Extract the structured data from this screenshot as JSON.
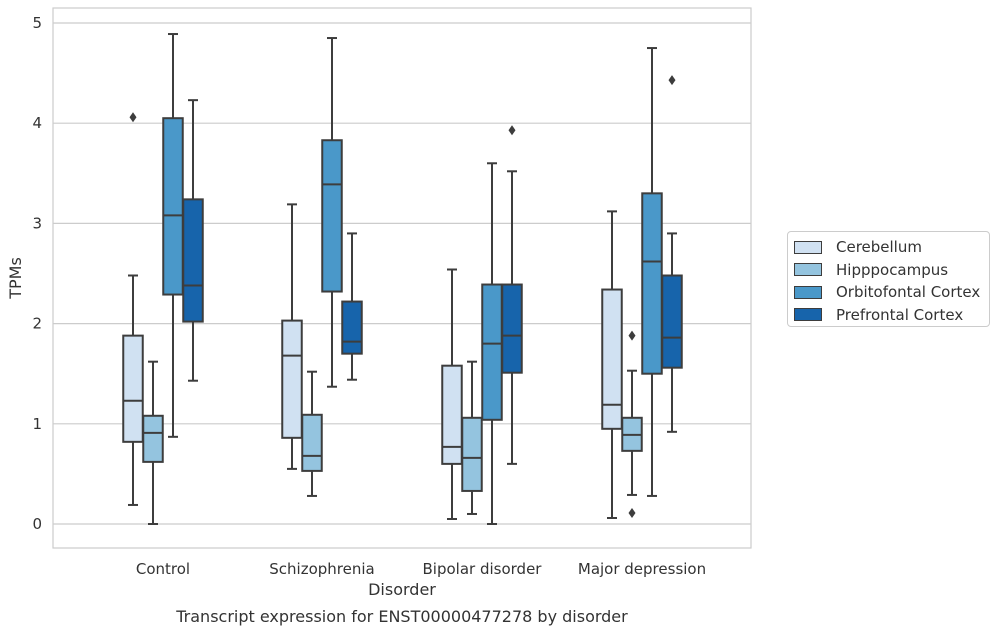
{
  "chart_data": {
    "type": "box",
    "title": "Transcript expression for ENST00000477278 by disorder",
    "xlabel": "Disorder",
    "ylabel": "TPMs",
    "ylim": [
      -0.24,
      5.15
    ],
    "yticks": [
      0,
      1,
      2,
      3,
      4,
      5
    ],
    "grid": "horizontal",
    "legend_position": "right",
    "categories": [
      "Control",
      "Schizophrenia",
      "Bipolar disorder",
      "Major depression"
    ],
    "series": [
      {
        "name": "Cerebellum",
        "color": "#d0e1f2",
        "boxes": [
          {
            "whislo": 0.19,
            "q1": 0.82,
            "med": 1.23,
            "q3": 1.88,
            "whishi": 2.48,
            "fliers": [
              4.06
            ]
          },
          {
            "whislo": 0.55,
            "q1": 0.86,
            "med": 1.68,
            "q3": 2.03,
            "whishi": 3.19,
            "fliers": []
          },
          {
            "whislo": 0.05,
            "q1": 0.6,
            "med": 0.77,
            "q3": 1.58,
            "whishi": 2.54,
            "fliers": []
          },
          {
            "whislo": 0.06,
            "q1": 0.95,
            "med": 1.19,
            "q3": 2.34,
            "whishi": 3.12,
            "fliers": []
          }
        ]
      },
      {
        "name": "Hipppocampus",
        "color": "#94c4df",
        "boxes": [
          {
            "whislo": 0.0,
            "q1": 0.62,
            "med": 0.91,
            "q3": 1.08,
            "whishi": 1.62,
            "fliers": []
          },
          {
            "whislo": 0.28,
            "q1": 0.53,
            "med": 0.68,
            "q3": 1.09,
            "whishi": 1.52,
            "fliers": []
          },
          {
            "whislo": 0.1,
            "q1": 0.33,
            "med": 0.66,
            "q3": 1.06,
            "whishi": 1.62,
            "fliers": []
          },
          {
            "whislo": 0.29,
            "q1": 0.73,
            "med": 0.89,
            "q3": 1.06,
            "whishi": 1.53,
            "fliers": [
              1.88,
              0.11
            ]
          }
        ]
      },
      {
        "name": "Orbitofontal Cortex",
        "color": "#4a98c9",
        "boxes": [
          {
            "whislo": 0.87,
            "q1": 2.29,
            "med": 3.08,
            "q3": 4.05,
            "whishi": 4.89,
            "fliers": []
          },
          {
            "whislo": 1.37,
            "q1": 2.32,
            "med": 3.39,
            "q3": 3.83,
            "whishi": 4.85,
            "fliers": []
          },
          {
            "whislo": 0.0,
            "q1": 1.04,
            "med": 1.8,
            "q3": 2.39,
            "whishi": 3.6,
            "fliers": []
          },
          {
            "whislo": 0.28,
            "q1": 1.5,
            "med": 2.62,
            "q3": 3.3,
            "whishi": 4.75,
            "fliers": []
          }
        ]
      },
      {
        "name": "Prefrontal Cortex",
        "color": "#1764ab",
        "boxes": [
          {
            "whislo": 1.43,
            "q1": 2.02,
            "med": 2.38,
            "q3": 3.24,
            "whishi": 4.23,
            "fliers": []
          },
          {
            "whislo": 1.44,
            "q1": 1.7,
            "med": 1.82,
            "q3": 2.22,
            "whishi": 2.9,
            "fliers": []
          },
          {
            "whislo": 0.6,
            "q1": 1.51,
            "med": 1.88,
            "q3": 2.39,
            "whishi": 3.52,
            "fliers": [
              3.93
            ]
          },
          {
            "whislo": 0.92,
            "q1": 1.56,
            "med": 1.86,
            "q3": 2.48,
            "whishi": 2.9,
            "fliers": [
              4.43
            ]
          }
        ]
      }
    ]
  }
}
